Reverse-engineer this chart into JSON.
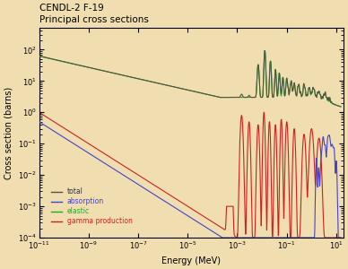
{
  "title_line1": "CENDL-2 F-19",
  "title_line2": "Principal cross sections",
  "xlabel": "Energy (MeV)",
  "ylabel": "Cross section (barns)",
  "background_color": "#f0ddb0",
  "plot_bg_color": "#f0ddb0",
  "xmin": 1e-11,
  "xmax": 20,
  "ymin": 0.0001,
  "ymax": 500,
  "legend_labels": [
    "total",
    "absorption",
    "elastic",
    "gamma production"
  ],
  "legend_colors": [
    "#555544",
    "#4444cc",
    "#22aa22",
    "#cc2222"
  ],
  "line_width": 0.8
}
